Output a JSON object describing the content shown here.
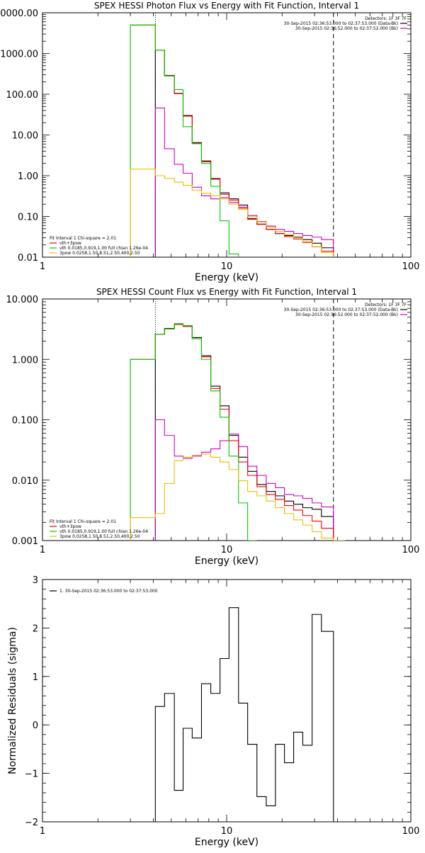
{
  "chart_data": [
    {
      "type": "line",
      "title": "SPEX HESSI Photon Flux vs Energy with Fit Function, Interval 1",
      "xlabel": "Energy (keV)",
      "ylabel": "",
      "xscale": "log",
      "yscale": "log",
      "xlim": [
        1,
        100
      ],
      "ylim": [
        0.01,
        10000
      ],
      "xticks": [
        "1",
        "10",
        "100"
      ],
      "yticks": [
        "10000.00",
        "1000.00",
        "100.00",
        "10.00",
        "1.00",
        "0.10",
        "0.01"
      ],
      "vlines": [
        {
          "x": 4.1,
          "style": "dotted",
          "color": "#000000"
        },
        {
          "x": 38,
          "style": "dashed",
          "color": "#000000"
        }
      ],
      "legend_right": [
        "Detectors: 1F 3F 7F",
        "30-Sep-2015 02:36:53.000 to 02:37:53.000 (Data-Bk)",
        "30-Sep-2015 02:36:52.000 to 02:37:52.000 (Bk)"
      ],
      "legend_left": [
        "Fit Interval 1   Chi-square = 2.01",
        "vth+3pow",
        "vth 0.0185,0.919,1.00  full chian 1.26e-04",
        "3pow 0.0258,1.50,8.51,2.50,400,2.50"
      ],
      "bin_edges": [
        3.0,
        4.1,
        4.6,
        5.2,
        5.8,
        6.5,
        7.3,
        8.2,
        9.2,
        10.3,
        11.6,
        13.0,
        14.6,
        16.4,
        18.4,
        20.6,
        23.1,
        25.9,
        29.1,
        32.7,
        38.0
      ],
      "series": [
        {
          "name": "Data-Bk",
          "color": "#000000",
          "values": [
            null,
            1200,
            290,
            105,
            30,
            6.5,
            2.3,
            0.85,
            0.38,
            0.27,
            0.19,
            0.088,
            0.065,
            0.048,
            0.038,
            0.034,
            0.031,
            0.027,
            0.022,
            0.017
          ]
        },
        {
          "name": "Bk",
          "color": "#cc00cc",
          "values": [
            null,
            46,
            4.6,
            1.9,
            1.15,
            0.52,
            0.32,
            0.27,
            0.29,
            0.22,
            0.17,
            0.105,
            0.075,
            0.058,
            0.048,
            0.043,
            0.038,
            0.034,
            0.031,
            0.027
          ]
        },
        {
          "name": "vth+3pow",
          "color": "#ff0000",
          "values": [
            5000,
            1200,
            285,
            103,
            29,
            6.3,
            2.2,
            0.82,
            0.35,
            0.25,
            0.16,
            0.085,
            0.064,
            0.048,
            0.038,
            0.032,
            0.028,
            0.023,
            0.018,
            0.014
          ]
        },
        {
          "name": "vth",
          "color": "#00cc00",
          "values": [
            5000,
            1200,
            280,
            130,
            16,
            6.1,
            2.0,
            0.55,
            0.078,
            0.012,
            null,
            null,
            null,
            null,
            null,
            null,
            null,
            null,
            null,
            null
          ]
        },
        {
          "name": "3pow",
          "color": "#e8c000",
          "values": [
            1.45,
            1.0,
            0.86,
            0.7,
            0.58,
            0.44,
            0.37,
            0.32,
            0.27,
            0.2,
            0.15,
            0.098,
            0.073,
            0.055,
            0.043,
            0.036,
            0.03,
            0.024,
            0.018,
            0.013
          ]
        }
      ]
    },
    {
      "type": "line",
      "title": "SPEX HESSI Count Flux vs Energy with Fit Function, Interval 1",
      "xlabel": "Energy (keV)",
      "ylabel": "",
      "xscale": "log",
      "yscale": "log",
      "xlim": [
        1,
        100
      ],
      "ylim": [
        0.001,
        10
      ],
      "xticks": [
        "1",
        "10",
        "100"
      ],
      "yticks": [
        "10.000",
        "1.000",
        "0.100",
        "0.010",
        "0.001"
      ],
      "vlines": [
        {
          "x": 4.1,
          "style": "dotted",
          "color": "#000000"
        },
        {
          "x": 38,
          "style": "dashed",
          "color": "#000000"
        }
      ],
      "legend_right": [
        "Detectors: 1F 3F 7F",
        "30-Sep-2015 02:36:53.000 to 02:37:53.000 (Data-Bk)",
        "30-Sep-2015 02:36:52.000 to 02:37:52.000 (Bk)"
      ],
      "legend_left": [
        "Fit Interval 1   Chi-square = 2.01",
        "vth+3pow",
        "vth 0.0185,0.919,1.00  full chian 1.26e-04",
        "3pow 0.0258,1.50,8.51,2.50,400,2.50"
      ],
      "bin_edges": [
        3.0,
        4.1,
        4.6,
        5.2,
        5.8,
        6.5,
        7.3,
        8.2,
        9.2,
        10.3,
        11.6,
        13.0,
        14.6,
        16.4,
        18.4,
        20.6,
        23.1,
        25.9,
        29.1,
        32.7,
        38.0,
        44.0
      ],
      "series": [
        {
          "name": "Data-Bk",
          "color": "#000000",
          "values": [
            null,
            2.6,
            3.25,
            3.8,
            3.6,
            2.3,
            1.15,
            0.36,
            0.17,
            0.055,
            0.024,
            0.014,
            0.0085,
            0.0065,
            0.0055,
            0.0045,
            0.004,
            0.0035,
            0.0033,
            0.0025,
            null
          ]
        },
        {
          "name": "Bk",
          "color": "#cc00cc",
          "values": [
            null,
            0.1,
            0.055,
            0.025,
            0.023,
            0.025,
            0.029,
            0.033,
            0.045,
            0.058,
            0.036,
            0.017,
            0.012,
            0.0088,
            0.0075,
            0.0058,
            0.0055,
            0.005,
            0.0042,
            0.0036,
            null
          ]
        },
        {
          "name": "vth+3pow",
          "color": "#ff0000",
          "values": [
            1.0,
            2.6,
            3.2,
            3.8,
            3.5,
            2.2,
            1.1,
            0.33,
            0.15,
            0.045,
            0.02,
            0.012,
            0.0078,
            0.0058,
            0.0048,
            0.0038,
            0.0032,
            0.0026,
            0.0021,
            0.0016,
            null
          ]
        },
        {
          "name": "vth",
          "color": "#00cc00",
          "values": [
            1.0,
            2.6,
            3.2,
            3.9,
            3.6,
            2.2,
            1.0,
            0.3,
            0.11,
            0.025,
            0.0042,
            0.001,
            null,
            null,
            null,
            null,
            null,
            null,
            null,
            null,
            null
          ]
        },
        {
          "name": "3pow",
          "color": "#e8c000",
          "values": [
            0.0024,
            0.0028,
            0.0088,
            0.021,
            0.024,
            0.026,
            0.027,
            0.024,
            0.02,
            0.015,
            0.0098,
            0.0065,
            0.0055,
            0.0045,
            0.0035,
            0.0028,
            0.0022,
            0.0018,
            0.0014,
            0.0011,
            0.0009
          ]
        }
      ]
    },
    {
      "type": "line",
      "title": "",
      "xlabel": "Energy (keV)",
      "ylabel": "Normalized Residuals (sigma)",
      "xscale": "log",
      "yscale": "linear",
      "xlim": [
        1,
        100
      ],
      "ylim": [
        -2,
        3
      ],
      "xticks": [
        "1",
        "10",
        "100"
      ],
      "yticks": [
        "3",
        "2",
        "1",
        "0",
        "−1",
        "−2"
      ],
      "legend_left": [
        "1. 30-Sep-2015 02:36:53.000 to 02:37:53.000"
      ],
      "bin_edges": [
        4.1,
        4.6,
        5.2,
        5.8,
        6.5,
        7.3,
        8.2,
        9.2,
        10.3,
        11.6,
        13.0,
        14.6,
        16.4,
        18.4,
        20.6,
        23.1,
        25.9,
        29.1,
        32.7,
        38.0
      ],
      "series": [
        {
          "name": "1. 30-Sep-2015 02:36:53.000 to 02:37:53.000",
          "color": "#000000",
          "values": [
            0.38,
            0.65,
            -1.35,
            -0.07,
            -0.27,
            0.85,
            0.65,
            1.37,
            2.42,
            0.45,
            -0.4,
            -1.48,
            -1.67,
            -0.4,
            -0.78,
            -0.15,
            -0.42,
            2.28,
            1.93
          ]
        }
      ]
    }
  ]
}
